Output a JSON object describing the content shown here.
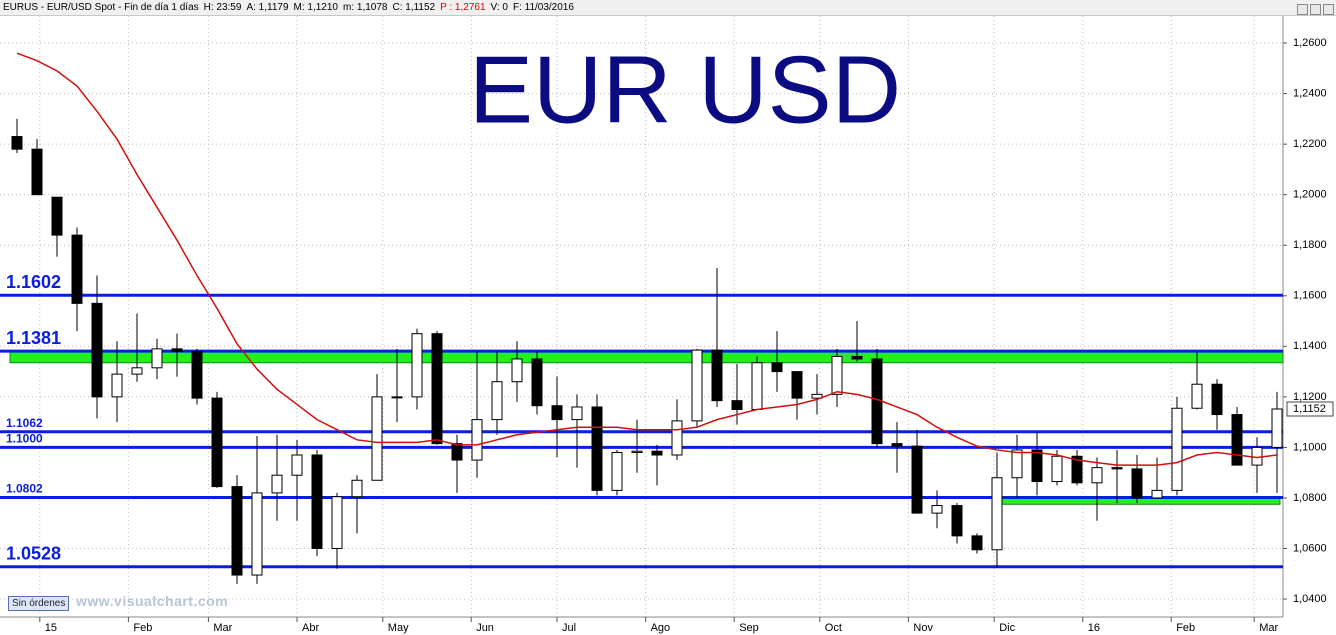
{
  "header": {
    "symbol": "EURUS - EUR/USD Spot - Fin de día 1 días",
    "items": [
      "H: 23:59",
      "A: 1,1179",
      "M: 1,1210",
      "m: 1,1078",
      "C: 1,1152",
      "P : 1,2761",
      "V: 0",
      "F: 11/03/2016"
    ]
  },
  "footer": {
    "button": "Sin órdenes",
    "watermark": "www.visualchart.com"
  },
  "chart_data": {
    "type": "candlestick",
    "title": "EUR USD",
    "open": [
      1.223,
      1.218,
      1.199,
      1.184,
      1.157,
      1.12,
      1.129,
      1.1315,
      1.139,
      1.138,
      1.1195,
      1.0845,
      1.0495,
      1.082,
      1.089,
      1.097,
      1.06,
      1.0805,
      1.087,
      1.12,
      1.12,
      1.145,
      1.1015,
      1.095,
      1.111,
      1.126,
      1.135,
      1.1165,
      1.111,
      1.116,
      1.083,
      1.098,
      1.0985,
      1.097,
      1.1105,
      1.1385,
      1.1185,
      1.115,
      1.1335,
      1.13,
      1.1195,
      1.121,
      1.136,
      1.135,
      1.1015,
      1.1005,
      1.074,
      1.077,
      1.065,
      1.0595,
      1.088,
      1.099,
      1.0865,
      1.0965,
      1.086,
      1.092,
      1.0915,
      1.08,
      1.083,
      1.1155,
      1.125,
      1.113,
      1.093,
      1.1
    ],
    "high": [
      1.23,
      1.222,
      1.199,
      1.187,
      1.168,
      1.142,
      1.153,
      1.143,
      1.145,
      1.139,
      1.122,
      1.089,
      1.1045,
      1.105,
      1.103,
      1.099,
      1.082,
      1.089,
      1.129,
      1.139,
      1.147,
      1.146,
      1.105,
      1.138,
      1.138,
      1.142,
      1.138,
      1.128,
      1.121,
      1.121,
      1.099,
      1.111,
      1.101,
      1.119,
      1.139,
      1.171,
      1.133,
      1.136,
      1.146,
      1.13,
      1.129,
      1.139,
      1.15,
      1.139,
      1.11,
      1.107,
      1.083,
      1.078,
      1.066,
      1.098,
      1.105,
      1.106,
      1.099,
      1.099,
      1.096,
      1.099,
      1.097,
      1.096,
      1.12,
      1.1375,
      1.127,
      1.116,
      1.104,
      1.122
    ],
    "low": [
      1.2165,
      1.2,
      1.1755,
      1.146,
      1.1115,
      1.11,
      1.126,
      1.127,
      1.128,
      1.117,
      1.084,
      1.046,
      1.046,
      1.071,
      1.071,
      1.057,
      1.052,
      1.066,
      1.087,
      1.11,
      1.115,
      1.101,
      1.082,
      1.088,
      1.105,
      1.118,
      1.113,
      1.096,
      1.092,
      1.081,
      1.081,
      1.09,
      1.085,
      1.095,
      1.108,
      1.116,
      1.109,
      1.115,
      1.122,
      1.111,
      1.113,
      1.116,
      1.134,
      1.1,
      1.09,
      1.074,
      1.068,
      1.062,
      1.058,
      1.0525,
      1.08,
      1.081,
      1.085,
      1.085,
      1.071,
      1.078,
      1.078,
      1.08,
      1.081,
      1.115,
      1.107,
      1.093,
      1.082,
      1.082
    ],
    "close": [
      1.218,
      1.2,
      1.184,
      1.157,
      1.12,
      1.129,
      1.1315,
      1.139,
      1.138,
      1.1195,
      1.0845,
      1.0495,
      1.082,
      1.089,
      1.097,
      1.06,
      1.0805,
      1.087,
      1.12,
      1.12,
      1.145,
      1.1015,
      1.095,
      1.111,
      1.126,
      1.135,
      1.1165,
      1.111,
      1.116,
      1.083,
      1.098,
      1.0985,
      1.097,
      1.1105,
      1.1385,
      1.1185,
      1.115,
      1.1335,
      1.13,
      1.1195,
      1.121,
      1.136,
      1.135,
      1.1015,
      1.1005,
      1.074,
      1.077,
      1.065,
      1.0595,
      1.088,
      1.099,
      1.0865,
      1.0965,
      1.086,
      1.092,
      1.0915,
      1.08,
      1.083,
      1.1155,
      1.125,
      1.113,
      1.093,
      1.1,
      1.1152
    ],
    "ma": [
      1.256,
      1.253,
      1.249,
      1.243,
      1.233,
      1.222,
      1.208,
      1.195,
      1.182,
      1.168,
      1.155,
      1.141,
      1.131,
      1.123,
      1.117,
      1.111,
      1.107,
      1.103,
      1.102,
      1.102,
      1.102,
      1.103,
      1.101,
      1.101,
      1.103,
      1.105,
      1.106,
      1.107,
      1.108,
      1.108,
      1.108,
      1.107,
      1.107,
      1.107,
      1.108,
      1.111,
      1.113,
      1.115,
      1.116,
      1.117,
      1.119,
      1.122,
      1.121,
      1.119,
      1.116,
      1.113,
      1.108,
      1.104,
      1.1005,
      1.099,
      1.098,
      1.098,
      1.097,
      1.095,
      1.094,
      1.093,
      1.093,
      1.093,
      1.094,
      1.097,
      1.098,
      1.097,
      1.096,
      1.097
    ],
    "ma_color": "#d01010",
    "level_color": "#0a1ee0",
    "zone_color": "#22ee22",
    "major_levels": [
      1.1602,
      1.1381,
      1.0528
    ],
    "minor_levels": [
      1.1062,
      {
        "value": 1.1,
        "label": "1.1000"
      },
      1.0802
    ],
    "zones": [
      {
        "from": -0.35,
        "to": 63.3,
        "low": 1.1335,
        "high": 1.1381
      },
      {
        "from": 48.8,
        "to": 63.15,
        "low": 1.0775,
        "high": 1.0802
      }
    ],
    "last_price": {
      "value": 1.1152,
      "label": "1,1152"
    },
    "xlim": [
      -0.85,
      63.3
    ],
    "ylim": [
      1.0329,
      1.2707
    ],
    "xticks": [
      {
        "value": 1.14,
        "label": "15"
      },
      {
        "value": 5.57,
        "label": "Feb"
      },
      {
        "value": 9.57,
        "label": "Mar"
      },
      {
        "value": 14.0,
        "label": "Abr"
      },
      {
        "value": 18.29,
        "label": "May"
      },
      {
        "value": 22.71,
        "label": "Jun"
      },
      {
        "value": 27.0,
        "label": "Jul"
      },
      {
        "value": 31.43,
        "label": "Ago"
      },
      {
        "value": 35.86,
        "label": "Sep"
      },
      {
        "value": 40.14,
        "label": "Oct"
      },
      {
        "value": 44.57,
        "label": "Nov"
      },
      {
        "value": 48.86,
        "label": "Dic"
      },
      {
        "value": 53.29,
        "label": "16"
      },
      {
        "value": 57.71,
        "label": "Feb"
      },
      {
        "value": 61.86,
        "label": "Mar"
      }
    ],
    "yticks": [
      {
        "value": 1.04,
        "label": "1,0400"
      },
      {
        "value": 1.06,
        "label": "1,0600"
      },
      {
        "value": 1.08,
        "label": "1,0800"
      },
      {
        "value": 1.1,
        "label": "1,1000"
      },
      {
        "value": 1.12,
        "label": "1,1200"
      },
      {
        "value": 1.14,
        "label": "1,1400"
      },
      {
        "value": 1.16,
        "label": "1,1600"
      },
      {
        "value": 1.18,
        "label": "1,1800"
      },
      {
        "value": 1.2,
        "label": "1,2000"
      },
      {
        "value": 1.22,
        "label": "1,2200"
      },
      {
        "value": 1.24,
        "label": "1,2400"
      },
      {
        "value": 1.26,
        "label": "1,2600"
      }
    ],
    "grid": true
  }
}
